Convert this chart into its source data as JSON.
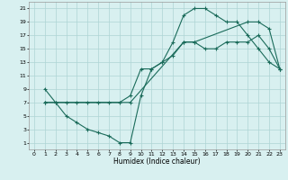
{
  "title": "",
  "xlabel": "Humidex (Indice chaleur)",
  "bg_color": "#d8f0f0",
  "grid_color": "#aed4d4",
  "line_color": "#1a6b5a",
  "xlim": [
    -0.5,
    23.5
  ],
  "ylim": [
    0,
    22
  ],
  "xticks": [
    0,
    1,
    2,
    3,
    4,
    5,
    6,
    7,
    8,
    9,
    10,
    11,
    12,
    13,
    14,
    15,
    16,
    17,
    18,
    19,
    20,
    21,
    22,
    23
  ],
  "yticks": [
    1,
    3,
    5,
    7,
    9,
    11,
    13,
    15,
    17,
    19,
    21
  ],
  "line1": [
    [
      1,
      9
    ],
    [
      2,
      7
    ],
    [
      3,
      5
    ],
    [
      4,
      4
    ],
    [
      5,
      3
    ],
    [
      6,
      2.5
    ],
    [
      7,
      2
    ],
    [
      8,
      1
    ],
    [
      9,
      1
    ],
    [
      10,
      8
    ],
    [
      11,
      12
    ],
    [
      12,
      13
    ],
    [
      13,
      16
    ],
    [
      14,
      20
    ],
    [
      15,
      21
    ],
    [
      16,
      21
    ],
    [
      17,
      20
    ],
    [
      18,
      19
    ],
    [
      19,
      19
    ],
    [
      20,
      17
    ],
    [
      21,
      15
    ],
    [
      22,
      13
    ],
    [
      23,
      12
    ]
  ],
  "line2": [
    [
      1,
      7
    ],
    [
      2,
      7
    ],
    [
      3,
      7
    ],
    [
      4,
      7
    ],
    [
      5,
      7
    ],
    [
      6,
      7
    ],
    [
      7,
      7
    ],
    [
      8,
      7
    ],
    [
      9,
      8
    ],
    [
      10,
      12
    ],
    [
      11,
      12
    ],
    [
      12,
      13
    ],
    [
      13,
      14
    ],
    [
      14,
      16
    ],
    [
      15,
      16
    ],
    [
      16,
      15
    ],
    [
      17,
      15
    ],
    [
      18,
      16
    ],
    [
      19,
      16
    ],
    [
      20,
      16
    ],
    [
      21,
      17
    ],
    [
      22,
      15
    ],
    [
      23,
      12
    ]
  ],
  "line3": [
    [
      1,
      7
    ],
    [
      9,
      7
    ],
    [
      14,
      16
    ],
    [
      15,
      16
    ],
    [
      20,
      19
    ],
    [
      21,
      19
    ],
    [
      22,
      18
    ],
    [
      23,
      12
    ]
  ]
}
